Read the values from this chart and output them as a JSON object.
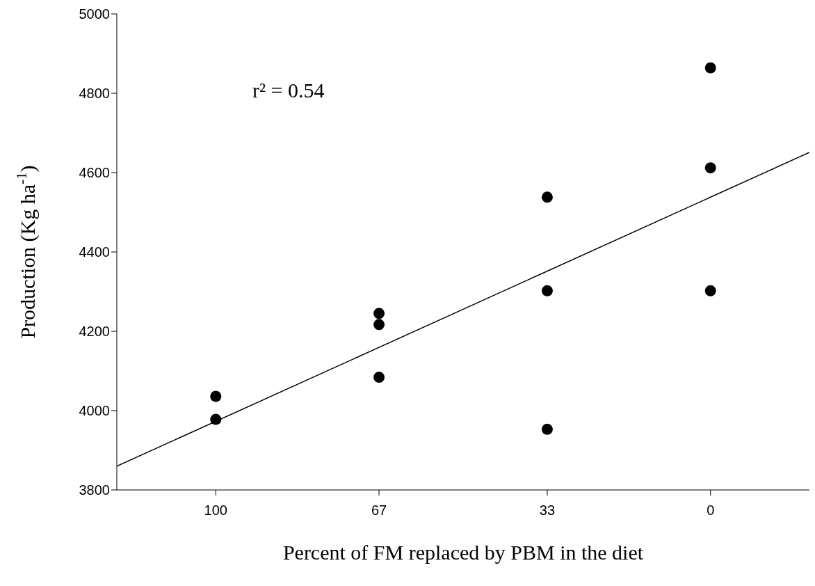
{
  "chart_data": {
    "type": "scatter",
    "xlabel": "Percent of FM replaced by PBM in the diet",
    "ylabel": "Production (Kg ha$^{-1}$)",
    "annotations": [
      "r² = 0.54"
    ],
    "series": [
      {
        "marker": "circle",
        "color": "#000000",
        "x": [
          100,
          100,
          67,
          67,
          67,
          33,
          33,
          33,
          0,
          0,
          0
        ],
        "values": [
          4036,
          3978,
          4245,
          4217,
          4084,
          4538,
          4302,
          3953,
          4864,
          4612,
          4302
        ]
      },
      {
        "type": "line",
        "color": "#000000",
        "x": [
          120,
          -20
        ],
        "values": [
          3860,
          4651
        ]
      }
    ],
    "xlim": [
      120,
      -20
    ],
    "xticks": [
      100,
      67,
      33,
      0
    ],
    "ylim": [
      3800,
      5000
    ],
    "yticks": [
      3800,
      4000,
      4200,
      4400,
      4600,
      4800,
      5000
    ],
    "grid": false
  }
}
